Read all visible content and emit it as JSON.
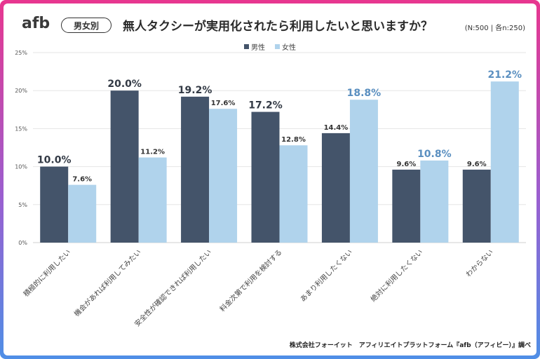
{
  "header": {
    "logo_text": "afb",
    "badge_label": "男女別",
    "title": "無人タクシーが実用化されたら利用したいと思いますか？",
    "sample_note": "(N:500 | 各n:250)"
  },
  "footer": {
    "source": "株式会社フォーイット　アフィリエイトプラットフォーム『afb（アフィビー）』調べ"
  },
  "colors": {
    "male": "#44546a",
    "female": "#b0d3ec",
    "female_highlight_label": "#5a8fc0",
    "grid": "#e6e6e6",
    "axis_text": "#555555"
  },
  "chart_data": {
    "type": "bar",
    "title": "無人タクシーが実用化されたら利用したいと思いますか？",
    "xlabel": "",
    "ylabel": "",
    "ylim": [
      0,
      25
    ],
    "yticks": [
      "0%",
      "5%",
      "10%",
      "15%",
      "20%",
      "25%"
    ],
    "grid": true,
    "legend_position": "top-center",
    "categories": [
      "積極的に利用したい",
      "機会があれば利用してみたい",
      "安全性が確認できれば利用したい",
      "料金次第で利用を検討する",
      "あまり利用したくない",
      "絶対に利用したくない",
      "わからない"
    ],
    "series": [
      {
        "name": "男性",
        "values": [
          10.0,
          20.0,
          19.2,
          17.2,
          14.4,
          9.6,
          9.6
        ],
        "labels": [
          "10.0%",
          "20.0%",
          "19.2%",
          "17.2%",
          "14.4%",
          "9.6%",
          "9.6%"
        ],
        "emphasis": [
          true,
          true,
          true,
          true,
          false,
          false,
          false
        ]
      },
      {
        "name": "女性",
        "values": [
          7.6,
          11.2,
          17.6,
          12.8,
          18.8,
          10.8,
          21.2
        ],
        "labels": [
          "7.6%",
          "11.2%",
          "17.6%",
          "12.8%",
          "18.8%",
          "10.8%",
          "21.2%"
        ],
        "emphasis": [
          false,
          false,
          false,
          false,
          true,
          true,
          true
        ]
      }
    ]
  }
}
